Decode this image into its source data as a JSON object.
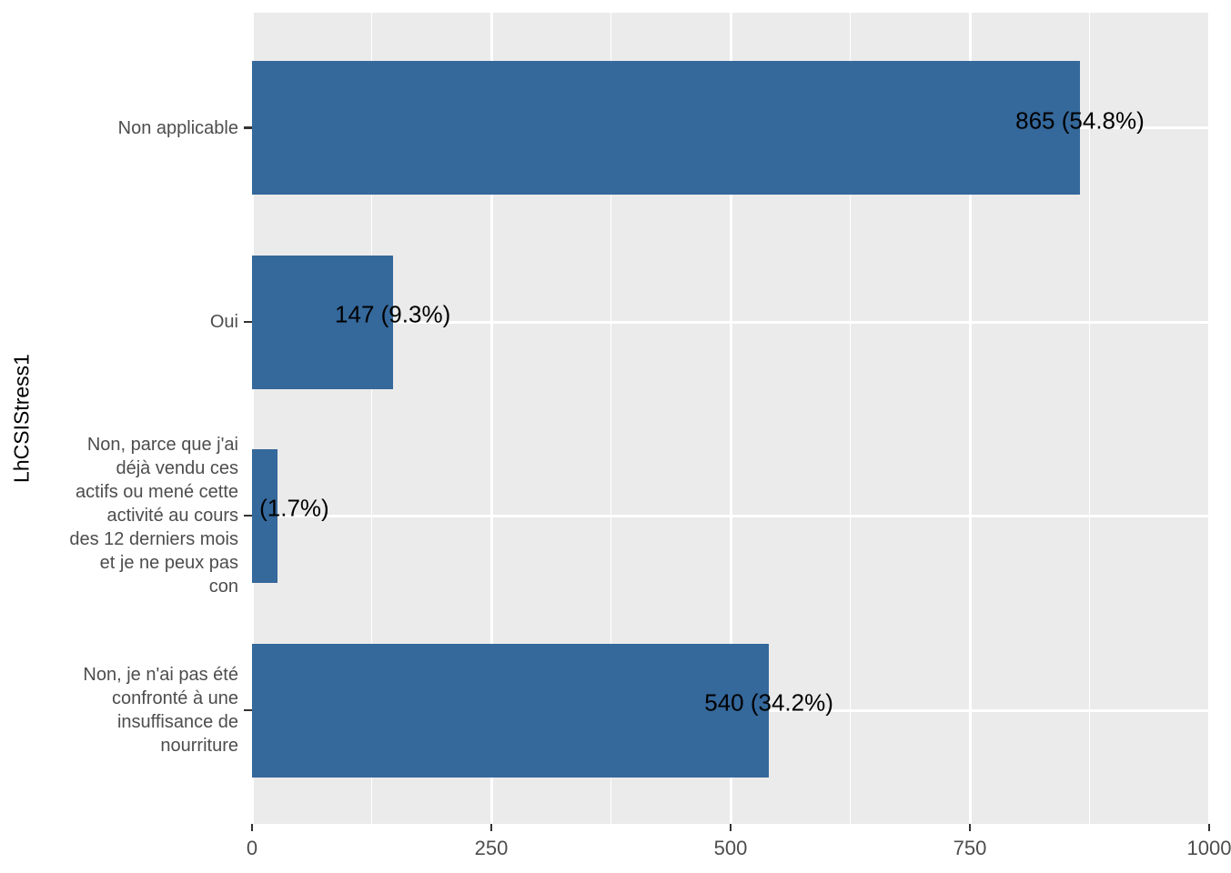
{
  "chart_data": {
    "type": "bar",
    "orientation": "horizontal",
    "title": "",
    "xlabel": "",
    "ylabel": "LhCSIStress1",
    "categories": [
      "Non applicable",
      "Oui",
      "Non, parce que j'ai\ndéjà vendu ces\nactifs ou mené cette\nactivité au cours\ndes 12 derniers mois\net je ne peux pas\ncon",
      "Non, je n'ai pas été\nconfronté à une\ninsuffisance de\nnourriture"
    ],
    "values": [
      865,
      147,
      27,
      540
    ],
    "percentages": [
      54.8,
      9.3,
      1.7,
      34.2
    ],
    "bar_labels": [
      "865 (54.8%)",
      "147 (9.3%)",
      "(1.7%)",
      "540 (34.2%)"
    ],
    "x_ticks": [
      0,
      250,
      500,
      750,
      1000
    ],
    "x_tick_labels": [
      "0",
      "250",
      "500",
      "750",
      "1000"
    ],
    "x_minor_ticks": [
      125,
      375,
      625,
      875
    ],
    "xlim": [
      0,
      1000
    ],
    "grid": "major-and-minor-vertical, major-horizontal",
    "legend": "none",
    "colors": {
      "bar": "#35689B",
      "panel_bg": "#EBEBEB",
      "grid": "#FFFFFF",
      "axis_text": "#4D4D4D",
      "bar_label": "#000000",
      "tick_mark": "#333333",
      "background": "#FFFFFF"
    }
  }
}
